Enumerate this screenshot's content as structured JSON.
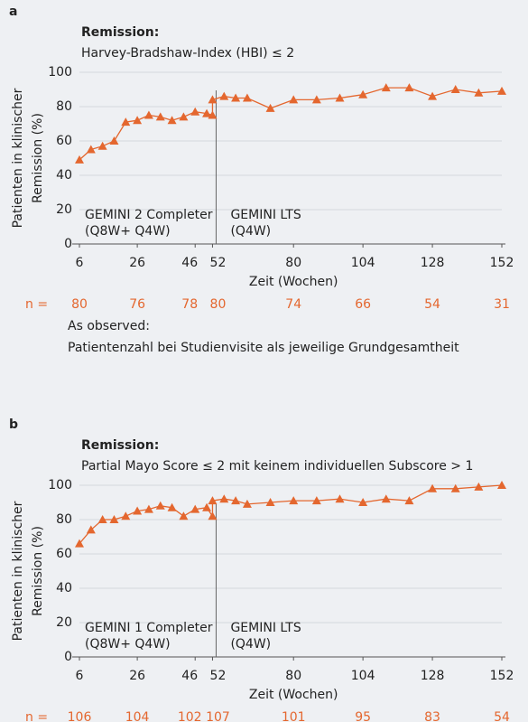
{
  "chart_data": [
    {
      "type": "line",
      "panel": "a",
      "title": "Remission:",
      "subtitle": "Harvey-Bradshaw-Index (HBI) ≤ 2",
      "ylabel": [
        "Patienten in klinischer",
        "Remission  (%)"
      ],
      "xlabel": "Zeit (Wochen)",
      "x": [
        6,
        10,
        14,
        18,
        22,
        26,
        30,
        34,
        38,
        42,
        46,
        50,
        52,
        52,
        56,
        60,
        64,
        72,
        80,
        88,
        96,
        104,
        112,
        120,
        128,
        136,
        144,
        152
      ],
      "series": [
        {
          "name": "HBI ≤ 2",
          "color": "#e4672f",
          "values": [
            49,
            55,
            57,
            60,
            71,
            72,
            75,
            74,
            72,
            74,
            77,
            76,
            75,
            84,
            86,
            85,
            85,
            79,
            84,
            84,
            85,
            87,
            91,
            91,
            86,
            90,
            88,
            89
          ]
        }
      ],
      "xlim": [
        6,
        152
      ],
      "xticks": [
        6,
        26,
        46,
        52,
        80,
        104,
        128,
        152
      ],
      "ylim": [
        0,
        100
      ],
      "yticks": [
        0,
        20,
        40,
        60,
        80,
        100
      ],
      "grid": true,
      "divider_x": 52,
      "annotations": [
        [
          "GEMINI 2 Completer",
          "(Q8W+ Q4W)"
        ],
        [
          "GEMINI LTS",
          "(Q4W)"
        ]
      ],
      "n_label": "n =",
      "n_x": [
        6,
        26,
        46,
        52,
        80,
        104,
        128,
        152
      ],
      "n_values": [
        80,
        76,
        78,
        80,
        74,
        66,
        54,
        31
      ],
      "notes": [
        "As observed:",
        "Patientenzahl bei Studienvisite als jeweilige Grundgesamtheit"
      ]
    },
    {
      "type": "line",
      "panel": "b",
      "title": "Remission:",
      "subtitle": "Partial Mayo Score ≤ 2 mit keinem individuellen Subscore > 1",
      "ylabel": [
        "Patienten in klinischer",
        "Remission  (%)"
      ],
      "xlabel": "Zeit (Wochen)",
      "x": [
        6,
        10,
        14,
        18,
        22,
        26,
        30,
        34,
        38,
        42,
        46,
        50,
        52,
        52,
        56,
        60,
        64,
        72,
        80,
        88,
        96,
        104,
        112,
        120,
        128,
        136,
        144,
        152
      ],
      "series": [
        {
          "name": "Partial Mayo Score ≤ 2",
          "color": "#e4672f",
          "values": [
            66,
            74,
            80,
            80,
            82,
            85,
            86,
            88,
            87,
            82,
            86,
            87,
            82,
            91,
            92,
            91,
            89,
            90,
            91,
            91,
            92,
            90,
            92,
            91,
            98,
            98,
            99,
            100
          ]
        }
      ],
      "xlim": [
        6,
        152
      ],
      "xticks": [
        6,
        26,
        46,
        52,
        80,
        104,
        128,
        152
      ],
      "ylim": [
        0,
        100
      ],
      "yticks": [
        0,
        20,
        40,
        60,
        80,
        100
      ],
      "grid": true,
      "divider_x": 52,
      "annotations": [
        [
          "GEMINI 1 Completer",
          "(Q8W+ Q4W)"
        ],
        [
          "GEMINI LTS",
          "(Q4W)"
        ]
      ],
      "n_label": "n =",
      "n_x": [
        6,
        26,
        46,
        52,
        80,
        104,
        128,
        152
      ],
      "n_values": [
        106,
        104,
        102,
        107,
        101,
        95,
        83,
        54
      ]
    }
  ]
}
